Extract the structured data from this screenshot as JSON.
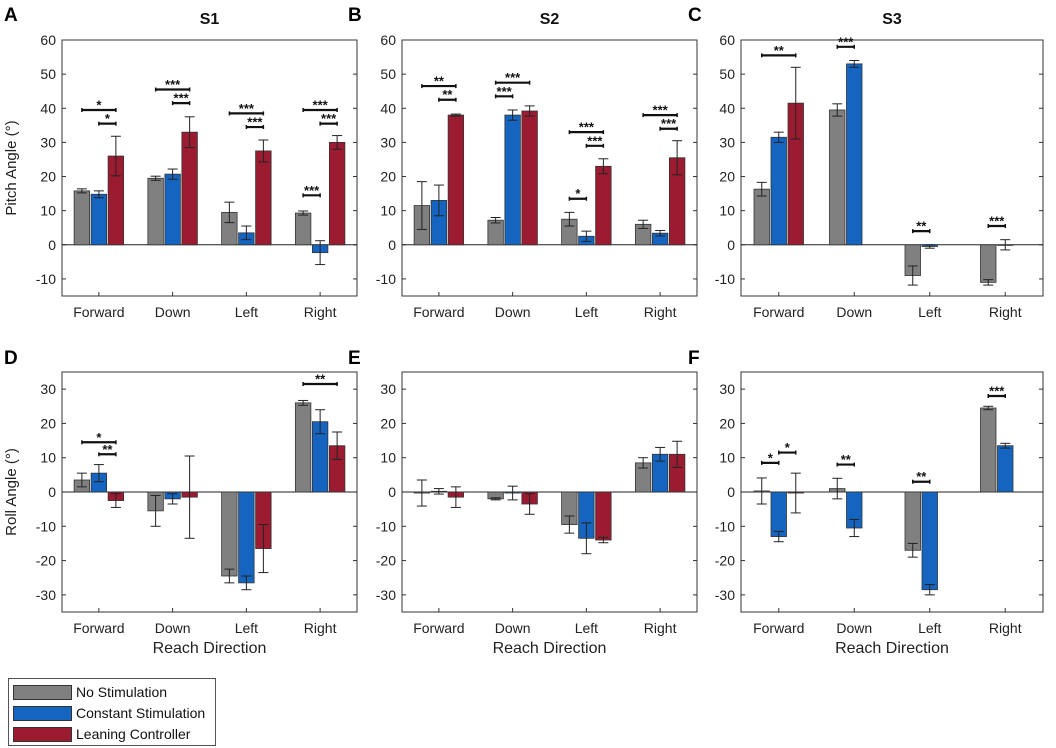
{
  "legend": {
    "items": [
      {
        "label": "No Stimulation",
        "color": "#808080"
      },
      {
        "label": "Constant Stimulation",
        "color": "#1565c0"
      },
      {
        "label": "Leaning Controller",
        "color": "#9b1c31"
      }
    ]
  },
  "chart_data": [
    {
      "panel": "A",
      "title": "S1",
      "type": "bar",
      "ylabel": "Pitch Angle (°)",
      "xlabel": "",
      "ylim": [
        -15,
        60
      ],
      "yticks": [
        -10,
        0,
        10,
        20,
        30,
        40,
        50,
        60
      ],
      "categories": [
        "Forward",
        "Down",
        "Left",
        "Right"
      ],
      "series": [
        {
          "name": "No Stimulation",
          "values": [
            15.8,
            19.5,
            9.5,
            9.3
          ],
          "errors": [
            0.6,
            0.6,
            3.0,
            0.6
          ]
        },
        {
          "name": "Constant Stimulation",
          "values": [
            14.8,
            20.7,
            3.5,
            -2.3
          ],
          "errors": [
            1.0,
            1.5,
            2.0,
            3.5
          ]
        },
        {
          "name": "Leaning Controller",
          "values": [
            26.0,
            33.0,
            27.5,
            30.0
          ],
          "errors": [
            5.8,
            4.5,
            3.2,
            2.0
          ]
        }
      ],
      "significance": [
        {
          "cat": 0,
          "from": 0,
          "to": 2,
          "label": "*",
          "y": 39.5
        },
        {
          "cat": 0,
          "from": 1,
          "to": 2,
          "label": "*",
          "y": 35.5
        },
        {
          "cat": 1,
          "from": 0,
          "to": 2,
          "label": "***",
          "y": 45.5
        },
        {
          "cat": 1,
          "from": 1,
          "to": 2,
          "label": "***",
          "y": 41.5
        },
        {
          "cat": 2,
          "from": 0,
          "to": 2,
          "label": "***",
          "y": 38.5
        },
        {
          "cat": 2,
          "from": 1,
          "to": 2,
          "label": "***",
          "y": 34.5
        },
        {
          "cat": 3,
          "from": 0,
          "to": 2,
          "label": "***",
          "y": 39.5
        },
        {
          "cat": 3,
          "from": 1,
          "to": 2,
          "label": "***",
          "y": 35.5
        },
        {
          "cat": 3,
          "from": 0,
          "to": 1,
          "label": "***",
          "y": 14.5
        }
      ]
    },
    {
      "panel": "B",
      "title": "S2",
      "type": "bar",
      "ylabel": "",
      "xlabel": "",
      "ylim": [
        -15,
        60
      ],
      "yticks": [
        -10,
        0,
        10,
        20,
        30,
        40,
        50,
        60
      ],
      "categories": [
        "Forward",
        "Down",
        "Left",
        "Right"
      ],
      "series": [
        {
          "name": "No Stimulation",
          "values": [
            11.5,
            7.2,
            7.5,
            6.0
          ],
          "errors": [
            7.0,
            0.8,
            2.0,
            1.2
          ]
        },
        {
          "name": "Constant Stimulation",
          "values": [
            13.0,
            38.0,
            2.5,
            3.4
          ],
          "errors": [
            4.5,
            1.5,
            1.5,
            0.8
          ]
        },
        {
          "name": "Leaning Controller",
          "values": [
            38.0,
            39.2,
            23.0,
            25.5
          ],
          "errors": [
            0.3,
            1.5,
            2.2,
            5.0
          ]
        }
      ],
      "significance": [
        {
          "cat": 0,
          "from": 0,
          "to": 2,
          "label": "**",
          "y": 46.5
        },
        {
          "cat": 0,
          "from": 1,
          "to": 2,
          "label": "**",
          "y": 42.5
        },
        {
          "cat": 1,
          "from": 0,
          "to": 2,
          "label": "***",
          "y": 47.5
        },
        {
          "cat": 1,
          "from": 0,
          "to": 1,
          "label": "***",
          "y": 43.5
        },
        {
          "cat": 2,
          "from": 0,
          "to": 2,
          "label": "***",
          "y": 33.0
        },
        {
          "cat": 2,
          "from": 1,
          "to": 2,
          "label": "***",
          "y": 29.0
        },
        {
          "cat": 2,
          "from": 0,
          "to": 1,
          "label": "*",
          "y": 13.5
        },
        {
          "cat": 3,
          "from": 0,
          "to": 2,
          "label": "***",
          "y": 38.0
        },
        {
          "cat": 3,
          "from": 1,
          "to": 2,
          "label": "***",
          "y": 34.0
        }
      ]
    },
    {
      "panel": "C",
      "title": "S3",
      "type": "bar",
      "ylabel": "",
      "xlabel": "",
      "ylim": [
        -15,
        60
      ],
      "yticks": [
        -10,
        0,
        10,
        20,
        30,
        40,
        50,
        60
      ],
      "categories": [
        "Forward",
        "Down",
        "Left",
        "Right"
      ],
      "series": [
        {
          "name": "No Stimulation",
          "values": [
            16.3,
            39.5,
            -9.0,
            -11.0
          ],
          "errors": [
            2.0,
            1.8,
            2.8,
            0.8
          ]
        },
        {
          "name": "Constant Stimulation",
          "values": [
            31.5,
            53.0,
            -0.5,
            0.0
          ],
          "errors": [
            1.5,
            1.0,
            0.5,
            1.5
          ]
        },
        {
          "name": "Leaning Controller",
          "values": [
            41.5,
            null,
            null,
            null
          ],
          "errors": [
            10.5,
            null,
            null,
            null
          ]
        }
      ],
      "significance": [
        {
          "cat": 0,
          "from": 0,
          "to": 2,
          "label": "**",
          "y": 55.5
        },
        {
          "cat": 1,
          "from": 0,
          "to": 1,
          "label": "***",
          "y": 58.0
        },
        {
          "cat": 2,
          "from": 0,
          "to": 1,
          "label": "**",
          "y": 4.0
        },
        {
          "cat": 3,
          "from": 0,
          "to": 1,
          "label": "***",
          "y": 5.5
        }
      ]
    },
    {
      "panel": "D",
      "title": "",
      "type": "bar",
      "ylabel": "Roll Angle (°)",
      "xlabel": "Reach Direction",
      "ylim": [
        -35,
        35
      ],
      "yticks": [
        -30,
        -20,
        -10,
        0,
        10,
        20,
        30
      ],
      "categories": [
        "Forward",
        "Down",
        "Left",
        "Right"
      ],
      "series": [
        {
          "name": "No Stimulation",
          "values": [
            3.5,
            -5.5,
            -24.5,
            26.0
          ],
          "errors": [
            2.0,
            4.5,
            2.0,
            0.7
          ]
        },
        {
          "name": "Constant Stimulation",
          "values": [
            5.5,
            -2.0,
            -26.5,
            20.5
          ],
          "errors": [
            2.5,
            1.5,
            2.0,
            3.5
          ]
        },
        {
          "name": "Leaning Controller",
          "values": [
            -2.5,
            -1.5,
            -16.5,
            13.5
          ],
          "errors": [
            2.0,
            12.0,
            7.0,
            4.0
          ]
        }
      ],
      "significance": [
        {
          "cat": 0,
          "from": 0,
          "to": 2,
          "label": "*",
          "y": 14.5
        },
        {
          "cat": 0,
          "from": 1,
          "to": 2,
          "label": "**",
          "y": 11.0
        },
        {
          "cat": 3,
          "from": 0,
          "to": 2,
          "label": "**",
          "y": 31.5
        }
      ]
    },
    {
      "panel": "E",
      "title": "",
      "type": "bar",
      "ylabel": "",
      "xlabel": "Reach Direction",
      "ylim": [
        -35,
        35
      ],
      "yticks": [
        -30,
        -20,
        -10,
        0,
        10,
        20,
        30
      ],
      "categories": [
        "Forward",
        "Down",
        "Left",
        "Right"
      ],
      "series": [
        {
          "name": "No Stimulation",
          "values": [
            -0.3,
            -2.0,
            -9.5,
            8.5
          ],
          "errors": [
            3.8,
            0.3,
            2.5,
            1.5
          ]
        },
        {
          "name": "Constant Stimulation",
          "values": [
            0.2,
            -0.3,
            -13.5,
            11.0
          ],
          "errors": [
            0.8,
            2.0,
            4.5,
            2.0
          ]
        },
        {
          "name": "Leaning Controller",
          "values": [
            -1.5,
            -3.5,
            -14.0,
            11.0
          ],
          "errors": [
            3.0,
            3.0,
            0.8,
            3.8
          ]
        }
      ],
      "significance": []
    },
    {
      "panel": "F",
      "title": "",
      "type": "bar",
      "ylabel": "",
      "xlabel": "Reach Direction",
      "ylim": [
        -35,
        35
      ],
      "yticks": [
        -30,
        -20,
        -10,
        0,
        10,
        20,
        30
      ],
      "categories": [
        "Forward",
        "Down",
        "Left",
        "Right"
      ],
      "series": [
        {
          "name": "No Stimulation",
          "values": [
            0.3,
            1.0,
            -17.0,
            24.5
          ],
          "errors": [
            3.8,
            3.0,
            2.0,
            0.5
          ]
        },
        {
          "name": "Constant Stimulation",
          "values": [
            -13.0,
            -10.5,
            -28.5,
            13.5
          ],
          "errors": [
            1.5,
            2.5,
            1.5,
            0.7
          ]
        },
        {
          "name": "Leaning Controller",
          "values": [
            -0.3,
            null,
            null,
            null
          ],
          "errors": [
            5.8,
            null,
            null,
            null
          ]
        }
      ],
      "significance": [
        {
          "cat": 0,
          "from": 0,
          "to": 1,
          "label": "*",
          "y": 8.5
        },
        {
          "cat": 0,
          "from": 1,
          "to": 2,
          "label": "*",
          "y": 11.5
        },
        {
          "cat": 1,
          "from": 0,
          "to": 1,
          "label": "**",
          "y": 8.0
        },
        {
          "cat": 2,
          "from": 0,
          "to": 1,
          "label": "**",
          "y": 3.0
        },
        {
          "cat": 3,
          "from": 0,
          "to": 1,
          "label": "***",
          "y": 28.0
        }
      ]
    }
  ]
}
